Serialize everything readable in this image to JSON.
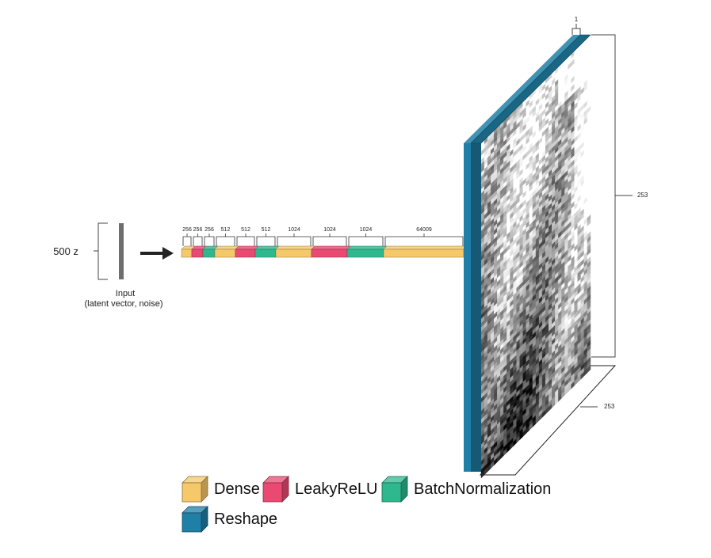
{
  "input": {
    "size_label": "500 z",
    "caption_line1": "Input",
    "caption_line2": "(latent vector, noise)"
  },
  "layers": [
    {
      "kind": "Dense",
      "units": "256"
    },
    {
      "kind": "LeakyReLU",
      "units": "256"
    },
    {
      "kind": "BatchNormalization",
      "units": "256"
    },
    {
      "kind": "Dense",
      "units": "512"
    },
    {
      "kind": "LeakyReLU",
      "units": "512"
    },
    {
      "kind": "BatchNormalization",
      "units": "512"
    },
    {
      "kind": "Dense",
      "units": "1024"
    },
    {
      "kind": "LeakyReLU",
      "units": "1024"
    },
    {
      "kind": "BatchNormalization",
      "units": "1024"
    },
    {
      "kind": "Dense",
      "units": "64009"
    }
  ],
  "output": {
    "depth_label": "1",
    "height_label": "253",
    "width_label": "253",
    "kind": "Reshape"
  },
  "colors": {
    "Dense": "#f5c86a",
    "LeakyReLU": "#ea4a72",
    "BatchNormalization": "#2fb88e",
    "Reshape": "#1f7fa6"
  },
  "legend": [
    {
      "label": "Dense",
      "color_key": "Dense"
    },
    {
      "label": "LeakyReLU",
      "color_key": "LeakyReLU"
    },
    {
      "label": "BatchNormalization",
      "color_key": "BatchNormalization"
    },
    {
      "label": "Reshape",
      "color_key": "Reshape"
    }
  ]
}
